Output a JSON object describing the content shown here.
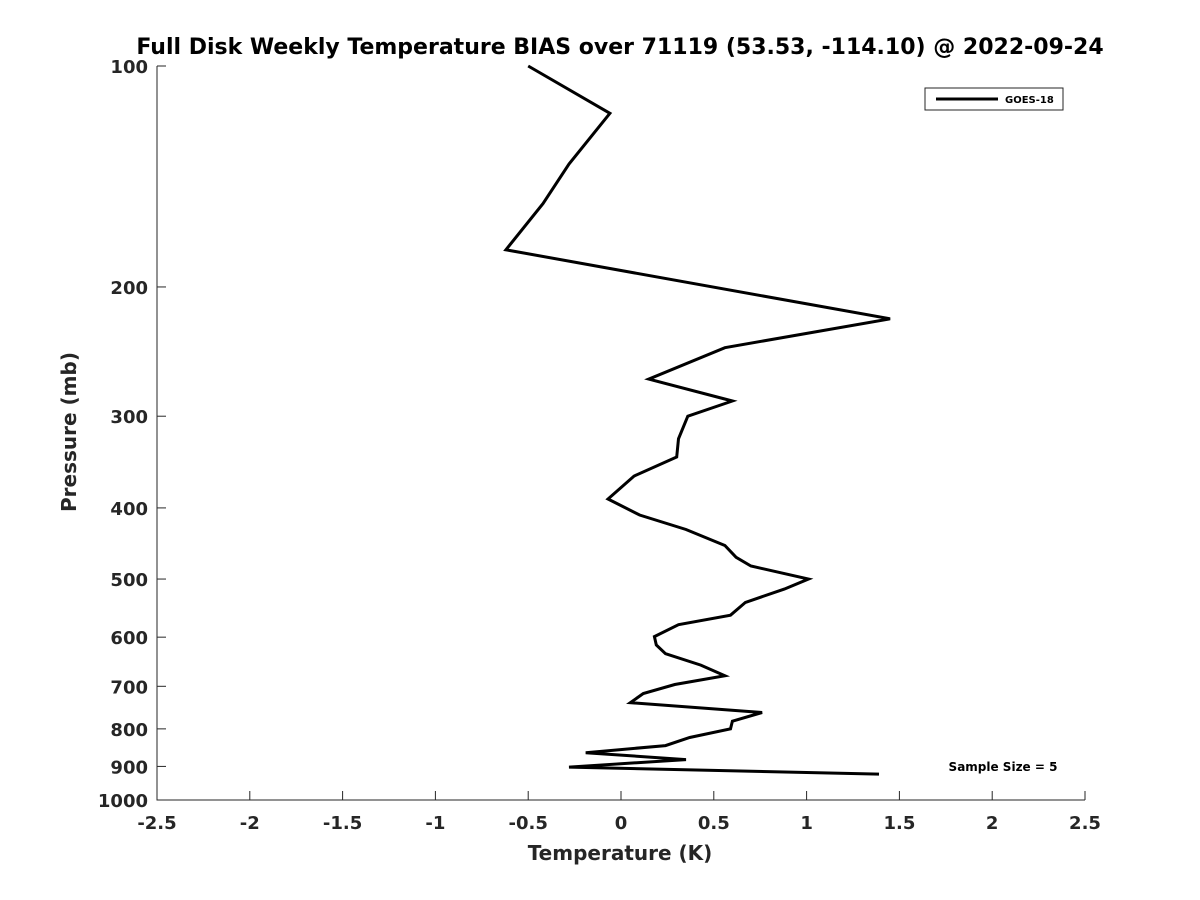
{
  "chart_data": {
    "type": "line",
    "title": "Full Disk Weekly Temperature BIAS over 71119 (53.53, -114.10) @ 2022-09-24",
    "xlabel": "Temperature (K)",
    "ylabel": "Pressure (mb)",
    "xlim": [
      -2.5,
      2.5
    ],
    "ylim": [
      100,
      1000
    ],
    "y_scale": "log",
    "y_reversed": true,
    "grid": false,
    "x_ticks": [
      -2.5,
      -2,
      -1.5,
      -1,
      -0.5,
      0,
      0.5,
      1,
      1.5,
      2,
      2.5
    ],
    "x_tick_labels": [
      "-2.5",
      "-2",
      "-1.5",
      "-1",
      "-0.5",
      "0",
      "0.5",
      "1",
      "1.5",
      "2",
      "2.5"
    ],
    "y_ticks": [
      100,
      200,
      300,
      400,
      500,
      600,
      700,
      800,
      900,
      1000
    ],
    "y_tick_labels": [
      "100",
      "200",
      "300",
      "400",
      "500",
      "600",
      "700",
      "800",
      "900",
      "1000"
    ],
    "legend_position": "top-right",
    "series": [
      {
        "name": "GOES-18",
        "color": "#000000",
        "points": [
          {
            "x": -0.5,
            "y": 100
          },
          {
            "x": -0.06,
            "y": 116
          },
          {
            "x": -0.28,
            "y": 136
          },
          {
            "x": -0.42,
            "y": 154
          },
          {
            "x": -0.62,
            "y": 178
          },
          {
            "x": 1.45,
            "y": 221
          },
          {
            "x": 0.56,
            "y": 242
          },
          {
            "x": 0.15,
            "y": 267
          },
          {
            "x": 0.6,
            "y": 286
          },
          {
            "x": 0.36,
            "y": 300
          },
          {
            "x": 0.31,
            "y": 322
          },
          {
            "x": 0.3,
            "y": 341
          },
          {
            "x": 0.07,
            "y": 362
          },
          {
            "x": -0.07,
            "y": 389
          },
          {
            "x": 0.1,
            "y": 409
          },
          {
            "x": 0.35,
            "y": 428
          },
          {
            "x": 0.56,
            "y": 450
          },
          {
            "x": 0.62,
            "y": 467
          },
          {
            "x": 0.7,
            "y": 480
          },
          {
            "x": 1.01,
            "y": 500
          },
          {
            "x": 0.88,
            "y": 516
          },
          {
            "x": 0.67,
            "y": 538
          },
          {
            "x": 0.59,
            "y": 560
          },
          {
            "x": 0.31,
            "y": 577
          },
          {
            "x": 0.18,
            "y": 599
          },
          {
            "x": 0.19,
            "y": 615
          },
          {
            "x": 0.24,
            "y": 632
          },
          {
            "x": 0.43,
            "y": 655
          },
          {
            "x": 0.56,
            "y": 677
          },
          {
            "x": 0.29,
            "y": 696
          },
          {
            "x": 0.12,
            "y": 716
          },
          {
            "x": 0.05,
            "y": 737
          },
          {
            "x": 0.76,
            "y": 760
          },
          {
            "x": 0.6,
            "y": 781
          },
          {
            "x": 0.59,
            "y": 800
          },
          {
            "x": 0.37,
            "y": 822
          },
          {
            "x": 0.24,
            "y": 843
          },
          {
            "x": -0.19,
            "y": 862
          },
          {
            "x": 0.35,
            "y": 881
          },
          {
            "x": -0.28,
            "y": 902
          },
          {
            "x": 1.39,
            "y": 922
          }
        ]
      }
    ],
    "annotations": [
      {
        "text": "Sample Size = 5",
        "position": "bottom-right"
      }
    ]
  }
}
